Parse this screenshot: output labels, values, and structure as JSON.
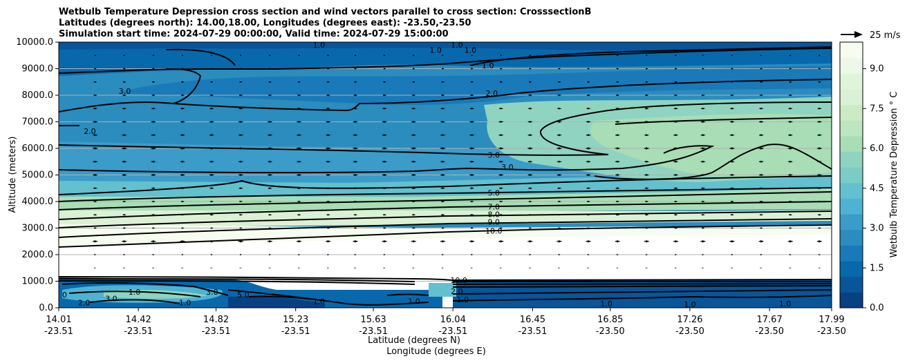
{
  "chart_data": {
    "type": "heatmap",
    "subtype": "filled-contour cross section with contour lines and wind vectors",
    "title_lines": [
      "Wetbulb Temperature Depression cross section and wind vectors parallel to cross section: CrosssectionB",
      "Latitudes (degrees north): 14.00,18.00, Longitudes (degrees east): -23.50,-23.50",
      "Simulation start time: 2024-07-29 00:00:00, Valid time: 2024-07-29 15:00:00"
    ],
    "xlabel_lines": [
      "Latitude (degrees N)",
      "Longitude (degrees E)"
    ],
    "ylabel": "Altitude (meters)",
    "x_range": [
      14.01,
      17.99
    ],
    "ylim": [
      0,
      10000
    ],
    "x_ticks": [
      {
        "lat": "14.01",
        "lon": "-23.51",
        "x": 14.01
      },
      {
        "lat": "14.42",
        "lon": "-23.51",
        "x": 14.42
      },
      {
        "lat": "14.82",
        "lon": "-23.51",
        "x": 14.82
      },
      {
        "lat": "15.23",
        "lon": "-23.51",
        "x": 15.23
      },
      {
        "lat": "15.63",
        "lon": "-23.51",
        "x": 15.63
      },
      {
        "lat": "16.04",
        "lon": "-23.51",
        "x": 16.04
      },
      {
        "lat": "16.45",
        "lon": "-23.51",
        "x": 16.45
      },
      {
        "lat": "16.85",
        "lon": "-23.50",
        "x": 16.85
      },
      {
        "lat": "17.26",
        "lon": "-23.50",
        "x": 17.26
      },
      {
        "lat": "17.67",
        "lon": "-23.50",
        "x": 17.67
      },
      {
        "lat": "17.99",
        "lon": "-23.50",
        "x": 17.99
      }
    ],
    "y_ticks": [
      "0.0",
      "1000.0",
      "2000.0",
      "3000.0",
      "4000.0",
      "5000.0",
      "6000.0",
      "7000.0",
      "8000.0",
      "9000.0",
      "10000.0"
    ],
    "y_grid": true,
    "colorbar": {
      "label": "Wetbulb Temperature Depression $^\\circ$C",
      "label_text": "Wetbulb Temperature Depression ° C",
      "range": [
        0,
        10
      ],
      "ticks": [
        "0.0",
        "1.5",
        "3.0",
        "4.5",
        "6.0",
        "7.5",
        "9.0"
      ],
      "colors": [
        "#084081",
        "#08559a",
        "#0868ac",
        "#1a7ab9",
        "#2b8cbe",
        "#3b9cc9",
        "#4eb3d3",
        "#62c0cf",
        "#7bccc4",
        "#8fd4c0",
        "#a8ddb5",
        "#bce6c0",
        "#ccebc5",
        "#dbf1d5",
        "#e0f3db",
        "#eef8ea",
        "#f7fcf0"
      ]
    },
    "quiver_key": {
      "label": "25 m/s",
      "speed": 25
    },
    "contour_levels_labeled": [
      "1.0",
      "2.0",
      "3.0",
      "5.0",
      "7.0",
      "8.0",
      "9.0",
      "10.0"
    ],
    "contour_labels": [
      {
        "text": "1.0",
        "x": 15.35,
        "y": 9900
      },
      {
        "text": "1.0",
        "x": 15.95,
        "y": 9700
      },
      {
        "text": "1.0",
        "x": 16.13,
        "y": 9700
      },
      {
        "text": "1.0",
        "x": 16.06,
        "y": 9900
      },
      {
        "text": "1.0",
        "x": 16.22,
        "y": 9120
      },
      {
        "text": "2.0",
        "x": 16.24,
        "y": 8080
      },
      {
        "text": "3.0",
        "x": 14.35,
        "y": 8150
      },
      {
        "text": "2.0",
        "x": 14.17,
        "y": 6650
      },
      {
        "text": "3.0",
        "x": 16.25,
        "y": 5750
      },
      {
        "text": "3.0",
        "x": 16.32,
        "y": 5300
      },
      {
        "text": "5.0",
        "x": 16.25,
        "y": 4330
      },
      {
        "text": "7.0",
        "x": 16.25,
        "y": 3800
      },
      {
        "text": "8.0",
        "x": 16.25,
        "y": 3520
      },
      {
        "text": "9.0",
        "x": 16.25,
        "y": 3230
      },
      {
        "text": "10.0",
        "x": 16.25,
        "y": 2900
      },
      {
        "text": "10.0",
        "x": 16.07,
        "y": 1040
      },
      {
        "text": "2.0",
        "x": 16.06,
        "y": 620
      },
      {
        "text": "1.0",
        "x": 16.09,
        "y": 310
      },
      {
        "text": "1.0",
        "x": 15.84,
        "y": 250
      },
      {
        "text": "1.0",
        "x": 16.83,
        "y": 150
      },
      {
        "text": "1.0",
        "x": 17.26,
        "y": 130
      },
      {
        "text": "1.0",
        "x": 17.75,
        "y": 150
      },
      {
        "text": "3.0",
        "x": 14.8,
        "y": 600
      },
      {
        "text": "1.0",
        "x": 14.66,
        "y": 200
      },
      {
        "text": "3.0",
        "x": 14.28,
        "y": 350
      },
      {
        "text": "1.0",
        "x": 14.4,
        "y": 600
      },
      {
        "text": "0",
        "x": 14.04,
        "y": 500
      },
      {
        "text": "2.0",
        "x": 14.14,
        "y": 200
      },
      {
        "text": "5.0",
        "x": 14.96,
        "y": 500
      },
      {
        "text": "1.0",
        "x": 15.35,
        "y": 250
      }
    ],
    "wind_vectors": {
      "x_values": [
        14.01,
        14.16,
        14.31,
        14.46,
        14.61,
        14.76,
        14.91,
        15.06,
        15.21,
        15.35,
        15.5,
        15.65,
        15.8,
        15.95,
        16.1,
        16.25,
        16.4,
        16.55,
        16.7,
        16.85,
        17.0,
        17.14,
        17.29,
        17.44,
        17.59,
        17.74,
        17.89
      ],
      "levels": [
        {
          "altitude": 1500,
          "speed": 2
        },
        {
          "altitude": 2000,
          "speed": 3
        },
        {
          "altitude": 2500,
          "speed": 9
        },
        {
          "altitude": 3000,
          "speed": 5
        },
        {
          "altitude": 3500,
          "speed": 6
        },
        {
          "altitude": 4000,
          "speed": 6
        },
        {
          "altitude": 4500,
          "speed": 7
        },
        {
          "altitude": 5000,
          "speed": 8
        },
        {
          "altitude": 5500,
          "speed": 8
        },
        {
          "altitude": 6000,
          "speed": 9
        },
        {
          "altitude": 6500,
          "speed": 8
        },
        {
          "altitude": 7000,
          "speed": 8
        },
        {
          "altitude": 7500,
          "speed": 7
        },
        {
          "altitude": 8000,
          "speed": 6
        },
        {
          "altitude": 8500,
          "speed": 5
        },
        {
          "altitude": 9000,
          "speed": 4
        },
        {
          "altitude": 9500,
          "speed": 3
        }
      ]
    }
  }
}
